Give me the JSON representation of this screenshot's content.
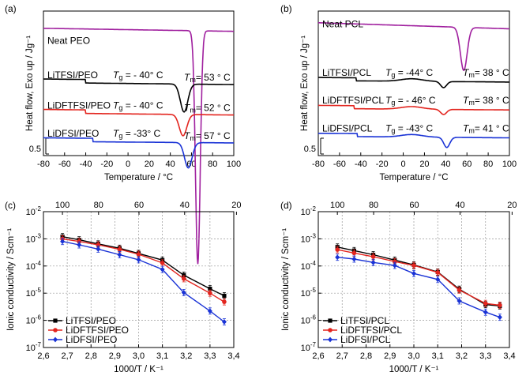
{
  "chart_data": [
    {
      "panel": "(a)",
      "type": "line",
      "title": "",
      "xlabel": "Temperature / °C",
      "ylabel": "Heat flow, Exo up / Jg⁻¹",
      "xlim": [
        -80,
        100
      ],
      "xticks": [
        "-80",
        "-60",
        "-40",
        "-20",
        "0",
        "20",
        "40",
        "60",
        "80",
        "100"
      ],
      "scale_bar_label": "0.5",
      "grid": false,
      "series": [
        {
          "name": "Neat PEO",
          "color": "#a0209f",
          "baseline": 0.5,
          "drift": 0.06,
          "dips": [
            {
              "t": 66,
              "depth": 4.6,
              "width": 3.2
            }
          ],
          "annotations": {
            "label": "Neat PEO"
          }
        },
        {
          "name": "LiTFSI/PEO",
          "color": "#000000",
          "baseline": -0.55,
          "drift": 0.04,
          "step": {
            "t": -40,
            "size": 0.07
          },
          "dips": [
            {
              "t": 53,
              "depth": 0.55,
              "width": 5
            }
          ],
          "annotations": {
            "label": "LiTFSI/PEO",
            "tg_sym": "T",
            "tg_sub": "g",
            "tg_val": " = - 40° C",
            "tm_sym": "T",
            "tm_sub": "m",
            "tm_val": "= 53 ° C"
          }
        },
        {
          "name": "LiDFTFSI/PEO",
          "color": "#e3251f",
          "baseline": -1.15,
          "drift": 0.04,
          "step": {
            "t": -40,
            "size": 0.07
          },
          "dips": [
            {
              "t": 52,
              "depth": 0.42,
              "width": 5
            }
          ],
          "annotations": {
            "label": "LiDFTFSI/PEO",
            "tg_sym": "T",
            "tg_sub": "g",
            "tg_val": " = - 40° C",
            "tm_sym": "T",
            "tm_sub": "m",
            "tm_val": "= 52 ° C"
          }
        },
        {
          "name": "LiDFSI/PEO",
          "color": "#1a33d6",
          "baseline": -1.7,
          "drift": 0.03,
          "step": {
            "t": -33,
            "size": 0.07
          },
          "dips": [
            {
              "t": 57,
              "depth": 0.5,
              "width": 5
            }
          ],
          "annotations": {
            "label": "LiDFSI/PEO",
            "tg_sym": "T",
            "tg_sub": "g",
            "tg_val": " = -33° C",
            "tm_sym": "T",
            "tm_sub": "m",
            "tm_val": "= 57 ° C"
          }
        }
      ]
    },
    {
      "panel": "(b)",
      "type": "line",
      "title": "",
      "xlabel": "Temperature / °C",
      "ylabel": "Heat flow, Exo up / Jg⁻¹",
      "xlim": [
        -80,
        100
      ],
      "xticks": [
        "-80",
        "-60",
        "-40",
        "-20",
        "0",
        "20",
        "40",
        "60",
        "80",
        "100"
      ],
      "scale_bar_label": "0.5",
      "grid": false,
      "series": [
        {
          "name": "Neat PCL",
          "color": "#a0209f",
          "baseline": 0.55,
          "drift": 0.12,
          "dips": [
            {
              "t": 57,
              "depth": 0.85,
              "width": 4.5
            }
          ],
          "annotations": {
            "label": "Neat PCL"
          }
        },
        {
          "name": "LiTFSI/PCL",
          "color": "#000000",
          "baseline": -0.5,
          "drift": 0.03,
          "step": {
            "t": -44,
            "size": 0.06
          },
          "dips": [
            {
              "t": 38,
              "depth": 0.12,
              "width": 4
            },
            {
              "t": 8,
              "depth": -0.05,
              "width": 14
            }
          ],
          "annotations": {
            "label": "LiTFSI/PCL",
            "tg_sym": "T",
            "tg_sub": "g",
            "tg_val": " = -44° C",
            "tm_sym": "T",
            "tm_sub": "m",
            "tm_val": "= 38 ° C"
          }
        },
        {
          "name": "LiDFTFSI/PCL",
          "color": "#e3251f",
          "baseline": -1.05,
          "drift": 0.03,
          "step": {
            "t": -46,
            "size": 0.06
          },
          "dips": [
            {
              "t": 38,
              "depth": 0.1,
              "width": 4
            },
            {
              "t": 8,
              "depth": -0.05,
              "width": 14
            }
          ],
          "annotations": {
            "label": "LiDFTFSI/PCL",
            "tg_sym": "T",
            "tg_sub": "g",
            "tg_val": " = - 46° C",
            "tm_sym": "T",
            "tm_sub": "m",
            "tm_val": "= 38 ° C"
          }
        },
        {
          "name": "LiDFSI/PCL",
          "color": "#1a33d6",
          "baseline": -1.6,
          "drift": 0.03,
          "step": {
            "t": -43,
            "size": 0.06
          },
          "dips": [
            {
              "t": 41,
              "depth": 0.2,
              "width": 4
            },
            {
              "t": 8,
              "depth": -0.05,
              "width": 14
            }
          ],
          "annotations": {
            "label": "LiDFSI/PCL",
            "tg_sym": "T",
            "tg_sub": "g",
            "tg_val": " = -43° C",
            "tm_sym": "T",
            "tm_sub": "m",
            "tm_val": "= 41 ° C"
          }
        }
      ]
    },
    {
      "panel": "(c)",
      "type": "line",
      "xlabel": "1000/T / K⁻¹",
      "ylabel": "Ionic conductivity / Scm⁻¹",
      "xlim": [
        2.6,
        3.4
      ],
      "ylim_log10": [
        -7,
        -2
      ],
      "xticks": [
        "2,6",
        "2,7",
        "2,8",
        "2,9",
        "3,0",
        "3,1",
        "3,2",
        "3,3",
        "3,4"
      ],
      "yticks": [
        "10-7",
        "10-6",
        "10-5",
        "10-4",
        "10-3",
        "10-2"
      ],
      "top_axis_label_values": [
        "100",
        "80",
        "60",
        "40",
        "20"
      ],
      "grid": true,
      "legend": "bottom-left",
      "x": [
        2.68,
        2.75,
        2.83,
        2.92,
        3.0,
        3.1,
        3.19,
        3.3,
        3.36
      ],
      "series": [
        {
          "name": "LiTFSI/PEO",
          "color": "#000000",
          "marker": "square",
          "values": [
            0.0012,
            0.00092,
            0.00065,
            0.00045,
            0.00029,
            0.000165,
            4.6e-05,
            1.45e-05,
            8e-06
          ]
        },
        {
          "name": "LiDFTFSI/PEO",
          "color": "#e3251f",
          "marker": "circle",
          "values": [
            0.001,
            0.0008,
            0.0006,
            0.00041,
            0.00027,
            0.00013,
            3.4e-05,
            1e-05,
            4.8e-06
          ]
        },
        {
          "name": "LiDFSI/PEO",
          "color": "#1a33d6",
          "marker": "diamond",
          "values": [
            0.0008,
            0.0006,
            0.00042,
            0.00026,
            0.00017,
            7.5e-05,
            1.05e-05,
            2.2e-06,
            8.8e-07
          ]
        }
      ]
    },
    {
      "panel": "(d)",
      "type": "line",
      "xlabel": "1000/T / K⁻¹",
      "ylabel": "Ionic conductivity / Scm⁻¹",
      "xlim": [
        2.6,
        3.4
      ],
      "ylim_log10": [
        -7,
        -2
      ],
      "xticks": [
        "2,6",
        "2,7",
        "2,8",
        "2,9",
        "3,0",
        "3,1",
        "3,2",
        "3,3",
        "3,4"
      ],
      "yticks": [
        "10-7",
        "10-6",
        "10-5",
        "10-4",
        "10-3",
        "10-2"
      ],
      "top_axis_label_values": [
        "100",
        "80",
        "60",
        "40",
        "20"
      ],
      "grid": true,
      "legend": "bottom-left",
      "x": [
        2.68,
        2.75,
        2.83,
        2.92,
        3.0,
        3.1,
        3.19,
        3.3,
        3.36
      ],
      "series": [
        {
          "name": "LiTFSI/PCL",
          "color": "#000000",
          "marker": "square",
          "values": [
            0.0005,
            0.00037,
            0.00026,
            0.000165,
            0.00011,
            6e-05,
            1.4e-05,
            3.8e-06,
            3.4e-06
          ]
        },
        {
          "name": "LiDFTFSI/PCL",
          "color": "#e3251f",
          "marker": "circle",
          "values": [
            0.0004,
            0.0003,
            0.00022,
            0.000145,
            0.000105,
            5.8e-05,
            1.3e-05,
            4.2e-06,
            3.6e-06
          ]
        },
        {
          "name": "LiDFSI/PCL",
          "color": "#1a33d6",
          "marker": "diamond",
          "values": [
            0.00021,
            0.00018,
            0.000135,
            0.000105,
            5.3e-05,
            3.2e-05,
            5.2e-06,
            2e-06,
            1.3e-06
          ]
        }
      ]
    }
  ]
}
